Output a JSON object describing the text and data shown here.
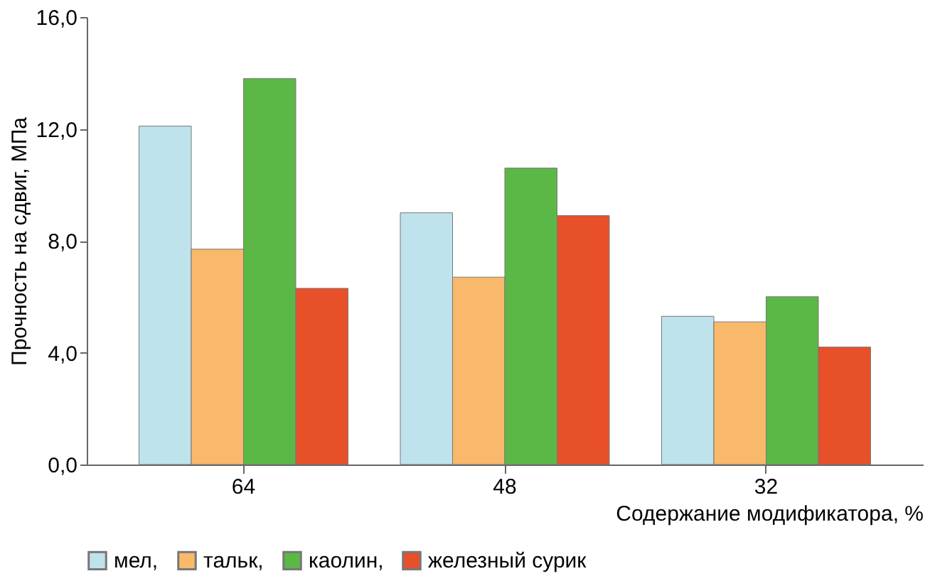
{
  "chart_data": {
    "type": "bar",
    "xlabel": "Содержание модификатора, %",
    "ylabel": "Прочность на сдвиг, МПа",
    "categories": [
      "64",
      "48",
      "32"
    ],
    "series": [
      {
        "name": "мел,",
        "color": "#bfe3ec",
        "values": [
          12.1,
          9.0,
          5.3
        ]
      },
      {
        "name": "тальк,",
        "color": "#f9b96a",
        "values": [
          7.7,
          6.7,
          5.1
        ]
      },
      {
        "name": "каолин,",
        "color": "#5cb846",
        "values": [
          13.8,
          10.6,
          6.0
        ]
      },
      {
        "name": "железный сурик",
        "color": "#e8502a",
        "values": [
          6.3,
          8.9,
          4.2
        ]
      }
    ],
    "ylim": [
      0,
      16
    ],
    "yticks": [
      {
        "value": 0,
        "label": "0,0"
      },
      {
        "value": 4,
        "label": "4,0"
      },
      {
        "value": 8,
        "label": "8,0"
      },
      {
        "value": 12,
        "label": "12,0"
      },
      {
        "value": 16,
        "label": "16,0"
      }
    ],
    "grid": false,
    "legend": "bottom"
  }
}
